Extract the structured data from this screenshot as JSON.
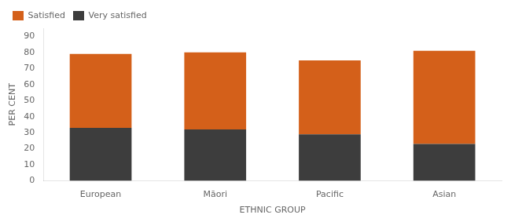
{
  "chart_data": {
    "type": "bar",
    "categories": [
      "European",
      "Māori",
      "Pacific",
      "Asian"
    ],
    "series": [
      {
        "name": "Very satisfied",
        "color": "#3d3d3d",
        "values": [
          33,
          32,
          29,
          23
        ]
      },
      {
        "name": "Satisfied",
        "color": "#d4601a",
        "values": [
          46,
          48,
          46,
          58
        ]
      }
    ],
    "stacked": true,
    "xlabel": "ETHNIC GROUP",
    "ylabel": "PER CENT",
    "ylim": [
      0,
      95
    ],
    "yticks": [
      0,
      10,
      20,
      30,
      40,
      50,
      60,
      70,
      80,
      90
    ],
    "grid": false,
    "legend": "upper left"
  }
}
